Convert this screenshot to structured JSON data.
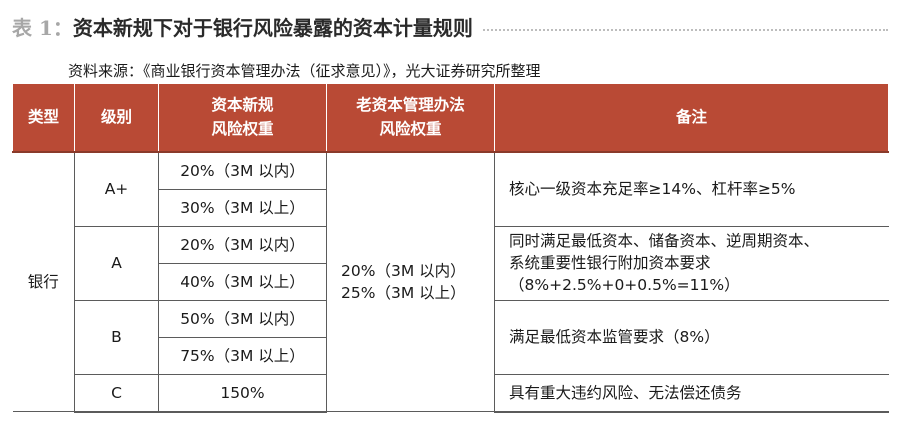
{
  "title": {
    "label": "表 1：",
    "text": "资本新规下对于银行风险暴露的资本计量规则"
  },
  "source": "资料来源：《商业银行资本管理办法（征求意见）》，光大证券研究所整理",
  "table": {
    "headers": {
      "type": "类型",
      "grade": "级别",
      "new_rule_l1": "资本新规",
      "new_rule_l2": "风险权重",
      "old_rule_l1": "老资本管理办法",
      "old_rule_l2": "风险权重",
      "note": "备注"
    },
    "type_value": "银行",
    "grades": [
      "A+",
      "A",
      "B",
      "C"
    ],
    "new_weights": [
      "20%（3M 以内）",
      "30%（3M 以上）",
      "20%（3M 以内）",
      "40%（3M 以上）",
      "50%（3M 以内）",
      "75%（3M 以上）",
      "150%"
    ],
    "old_weights": {
      "line1": "20%（3M 以内）",
      "line2": "25%（3M 以上）"
    },
    "notes": {
      "a_plus": "核心一级资本充足率≥14%、杠杆率≥5%",
      "a_line1": "同时满足最低资本、储备资本、逆周期资本、",
      "a_line2": "系统重要性银行附加资本要求",
      "a_line3": "（8%+2.5%+0+0.5%=11%）",
      "b": "满足最低资本监管要求（8%）",
      "c": "具有重大违约风险、无法偿还债务"
    }
  }
}
